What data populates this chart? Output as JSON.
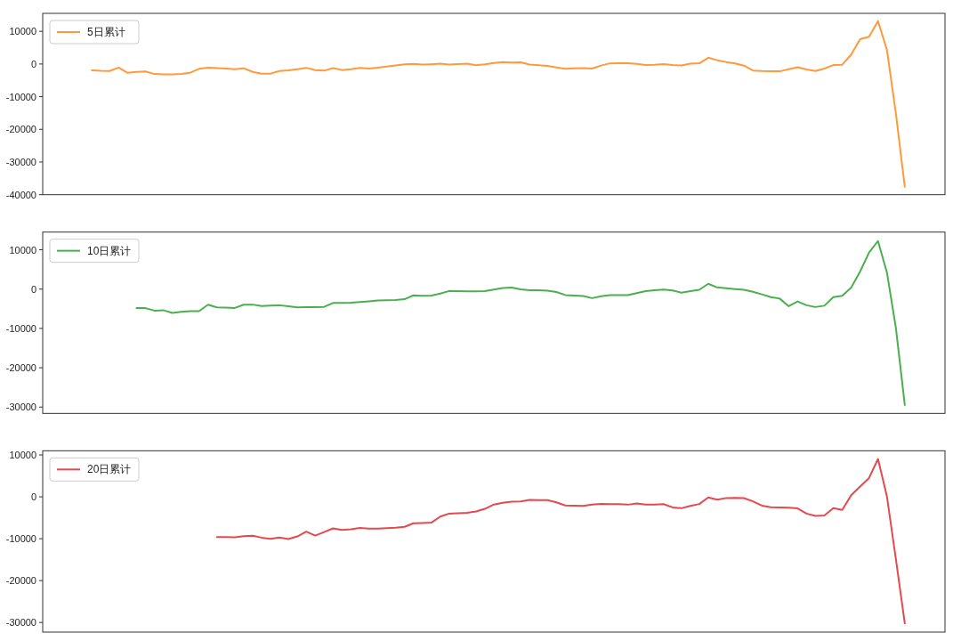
{
  "chart_data": [
    {
      "type": "line",
      "categories": [
        null,
        null,
        null,
        null,
        null,
        null,
        null,
        null,
        null,
        null,
        null,
        null,
        null,
        null,
        null,
        null,
        null,
        null,
        null,
        null,
        null,
        null,
        null,
        null,
        null,
        null,
        null,
        null,
        null,
        null,
        null,
        null,
        null,
        null,
        null,
        null,
        null,
        null,
        null,
        null,
        null,
        null,
        null,
        null,
        null,
        null,
        null,
        null,
        null,
        null,
        null,
        null,
        null,
        null,
        null,
        null,
        null,
        null,
        null,
        null,
        null,
        null,
        null,
        null,
        null,
        null,
        null,
        null,
        null,
        null,
        null,
        null,
        null,
        null,
        null,
        null,
        null,
        null,
        null,
        null,
        null,
        null,
        null,
        null,
        null,
        null,
        null,
        null,
        null,
        null,
        null,
        null,
        null,
        null,
        null,
        null,
        null,
        null,
        null,
        null,
        null
      ],
      "ylim": [
        -40000,
        15500
      ],
      "yticks": [
        10000,
        0,
        -10000,
        -20000,
        -30000,
        -40000
      ],
      "tick_labels": "y",
      "legend": "top left",
      "series": [
        {
          "name": "5日累计",
          "color": "#ff9a3c",
          "values": [
            null,
            null,
            null,
            null,
            null,
            -1940,
            -2090,
            -2150,
            -1070,
            -2710,
            -2390,
            -2270,
            -3060,
            -3160,
            -3200,
            -3030,
            -2660,
            -1480,
            -1100,
            -1260,
            -1410,
            -1570,
            -1310,
            -2430,
            -2940,
            -2930,
            -2140,
            -1970,
            -1590,
            -1160,
            -1860,
            -2040,
            -1250,
            -1840,
            -1580,
            -1190,
            -1420,
            -1130,
            -770,
            -440,
            -100,
            10,
            -200,
            -70,
            100,
            -180,
            -20,
            130,
            -390,
            -110,
            300,
            590,
            470,
            500,
            -160,
            -380,
            -590,
            -1080,
            -1470,
            -1350,
            -1230,
            -1410,
            -470,
            200,
            240,
            270,
            40,
            -300,
            -220,
            -20,
            -280,
            -470,
            110,
            220,
            1920,
            1150,
            610,
            190,
            -500,
            -1990,
            -2160,
            -2200,
            -2240,
            -1590,
            -1010,
            -1690,
            -2160,
            -1400,
            -330,
            -210,
            2900,
            7600,
            8340,
            13140,
            4340,
            -15040,
            -37580,
            null,
            null,
            null,
            null
          ]
        }
      ]
    },
    {
      "type": "line",
      "categories": [
        null,
        null,
        null,
        null,
        null,
        null,
        null,
        null,
        null,
        null,
        null,
        null,
        null,
        null,
        null,
        null,
        null,
        null,
        null,
        null,
        null,
        null,
        null,
        null,
        null,
        null,
        null,
        null,
        null,
        null,
        null,
        null,
        null,
        null,
        null,
        null,
        null,
        null,
        null,
        null,
        null,
        null,
        null,
        null,
        null,
        null,
        null,
        null,
        null,
        null,
        null,
        null,
        null,
        null,
        null,
        null,
        null,
        null,
        null,
        null,
        null,
        null,
        null,
        null,
        null,
        null,
        null,
        null,
        null,
        null,
        null,
        null,
        null,
        null,
        null,
        null,
        null,
        null,
        null,
        null,
        null,
        null,
        null,
        null,
        null,
        null,
        null,
        null,
        null,
        null,
        null,
        null,
        null,
        null,
        null,
        null,
        null,
        null,
        null,
        null,
        null
      ],
      "ylim": [
        -31600,
        14500
      ],
      "yticks": [
        10000,
        0,
        -10000,
        -20000,
        -30000
      ],
      "tick_labels": "y",
      "legend": "top left",
      "series": [
        {
          "name": "10日累计",
          "color": "#4caf4f",
          "values": [
            null,
            null,
            null,
            null,
            null,
            null,
            null,
            null,
            null,
            null,
            -4840,
            -4840,
            -5470,
            -5360,
            -6050,
            -5780,
            -5630,
            -5600,
            -3960,
            -4640,
            -4720,
            -4800,
            -3980,
            -3940,
            -4330,
            -4180,
            -4110,
            -4360,
            -4640,
            -4600,
            -4600,
            -4520,
            -3540,
            -3510,
            -3480,
            -3280,
            -3090,
            -2870,
            -2820,
            -2780,
            -2570,
            -1580,
            -1720,
            -1660,
            -1150,
            -480,
            -520,
            -550,
            -570,
            -530,
            -120,
            260,
            390,
            -80,
            -310,
            -310,
            -380,
            -740,
            -1510,
            -1630,
            -1740,
            -2300,
            -1810,
            -1550,
            -1550,
            -1550,
            -1010,
            -530,
            -270,
            -100,
            -340,
            -900,
            -530,
            -170,
            1350,
            430,
            240,
            0,
            -190,
            -690,
            -1340,
            -2040,
            -2410,
            -4350,
            -3140,
            -4110,
            -4560,
            -4220,
            -2040,
            -1680,
            400,
            4460,
            9300,
            12220,
            4260,
            -9790,
            -29460,
            null,
            null,
            null,
            null
          ]
        }
      ]
    },
    {
      "type": "line",
      "categories": [
        null,
        null,
        null,
        null,
        null,
        null,
        null,
        null,
        null,
        null,
        null,
        null,
        null,
        null,
        null,
        null,
        null,
        null,
        null,
        null,
        null,
        null,
        null,
        null,
        null,
        null,
        null,
        null,
        null,
        null,
        null,
        null,
        null,
        null,
        null,
        null,
        null,
        null,
        null,
        null,
        null,
        null,
        null,
        null,
        null,
        null,
        null,
        null,
        null,
        null,
        null,
        null,
        null,
        null,
        null,
        null,
        null,
        null,
        null,
        null,
        null,
        null,
        null,
        null,
        null,
        null,
        null,
        null,
        null,
        null,
        null,
        null,
        null,
        null,
        null,
        null,
        null,
        null,
        null,
        null,
        null,
        null,
        null,
        null,
        null,
        null,
        null,
        null,
        null,
        null,
        null,
        null,
        null,
        null,
        null,
        null,
        null,
        null,
        null,
        null,
        null
      ],
      "ylim": [
        -32300,
        11000
      ],
      "yticks": [
        10000,
        0,
        -10000,
        -20000,
        -30000
      ],
      "tick_labels": "y",
      "legend": "top left",
      "series": [
        {
          "name": "20日累计",
          "color": "#e5484d",
          "values": [
            null,
            null,
            null,
            null,
            null,
            null,
            null,
            null,
            null,
            null,
            null,
            null,
            null,
            null,
            null,
            null,
            null,
            null,
            null,
            -9580,
            -9630,
            -9680,
            -9380,
            -9270,
            -9740,
            -10030,
            -9720,
            -10080,
            -9460,
            -8310,
            -9260,
            -8420,
            -7540,
            -7880,
            -7720,
            -7410,
            -7560,
            -7590,
            -7480,
            -7380,
            -7150,
            -6300,
            -6240,
            -6170,
            -4710,
            -4000,
            -3900,
            -3800,
            -3480,
            -2860,
            -1830,
            -1430,
            -1160,
            -1080,
            -730,
            -760,
            -790,
            -1310,
            -2050,
            -2110,
            -2170,
            -1860,
            -1660,
            -1740,
            -1740,
            -1870,
            -1600,
            -1840,
            -1870,
            -1750,
            -2520,
            -2720,
            -2150,
            -1710,
            -140,
            -660,
            -280,
            -250,
            -310,
            -1080,
            -2100,
            -2490,
            -2520,
            -2590,
            -2760,
            -3990,
            -4570,
            -4450,
            -2710,
            -3120,
            400,
            2450,
            4500,
            9050,
            100,
            -14790,
            -30190,
            null,
            null,
            null,
            null
          ]
        }
      ]
    }
  ]
}
